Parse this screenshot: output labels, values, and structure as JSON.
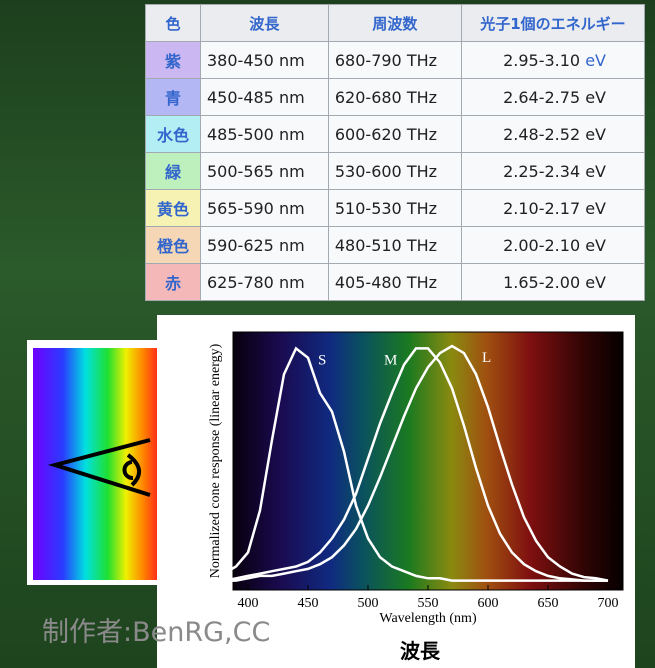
{
  "table": {
    "header": [
      "色",
      "波長",
      "周波数",
      "光子1個のエネルギー"
    ],
    "rows": [
      [
        "紫",
        "380-450 nm",
        "680-790 THz",
        [
          "2.95-3.10",
          "eV"
        ]
      ],
      [
        "青",
        "450-485 nm",
        "620-680 THz",
        "2.64-2.75 eV"
      ],
      [
        "水色",
        "485-500 nm",
        "600-620 THz",
        "2.48-2.52 eV"
      ],
      [
        "緑",
        "500-565 nm",
        "530-600 THz",
        "2.25-2.34 eV"
      ],
      [
        "黄色",
        "565-590 nm",
        "510-530 THz",
        "2.10-2.17 eV"
      ],
      [
        "橙色",
        "590-625 nm",
        "480-510 THz",
        "2.00-2.10 eV"
      ],
      [
        "赤",
        "625-780 nm",
        "405-480 THz",
        "1.65-2.00 eV"
      ]
    ],
    "colors": [
      "#cbb8f2",
      "#b3b8f5",
      "#b3eef5",
      "#bdf0bd",
      "#f5f2b3",
      "#f5d7b5",
      "#f5b8b8"
    ]
  },
  "chart_data": {
    "type": "line",
    "xlabel": "Wavelength (nm)",
    "ylabel": "Normalized cone response (linear energy)",
    "x": [
      380,
      390,
      400,
      410,
      420,
      430,
      440,
      450,
      460,
      470,
      480,
      490,
      500,
      510,
      520,
      530,
      540,
      550,
      560,
      570,
      580,
      590,
      600,
      610,
      620,
      630,
      640,
      650,
      660,
      670,
      680,
      690,
      700
    ],
    "series": [
      {
        "name": "S",
        "color": "#ffffff",
        "values": [
          0.03,
          0.06,
          0.12,
          0.3,
          0.6,
          0.88,
          0.99,
          0.95,
          0.8,
          0.72,
          0.55,
          0.32,
          0.18,
          0.1,
          0.06,
          0.04,
          0.02,
          0.01,
          0.01,
          0,
          0,
          0,
          0,
          0,
          0,
          0,
          0,
          0,
          0,
          0,
          0,
          0,
          0
        ]
      },
      {
        "name": "M",
        "color": "#ffffff",
        "values": [
          0,
          0.01,
          0.02,
          0.03,
          0.04,
          0.05,
          0.06,
          0.08,
          0.12,
          0.18,
          0.26,
          0.37,
          0.52,
          0.67,
          0.8,
          0.92,
          0.99,
          0.99,
          0.93,
          0.82,
          0.66,
          0.48,
          0.32,
          0.2,
          0.12,
          0.07,
          0.04,
          0.02,
          0.01,
          0.005,
          0,
          0,
          0
        ]
      },
      {
        "name": "L",
        "color": "#ffffff",
        "values": [
          0,
          0,
          0.01,
          0.02,
          0.02,
          0.03,
          0.04,
          0.05,
          0.07,
          0.1,
          0.15,
          0.22,
          0.32,
          0.44,
          0.57,
          0.7,
          0.82,
          0.91,
          0.97,
          1.0,
          0.97,
          0.88,
          0.74,
          0.57,
          0.41,
          0.27,
          0.17,
          0.1,
          0.06,
          0.03,
          0.015,
          0.01,
          0
        ]
      }
    ],
    "xlim": [
      387.5,
      712.5
    ],
    "ylim": [
      -0.04,
      1.06
    ],
    "xticks": [
      400,
      450,
      500,
      550,
      600,
      650,
      700
    ]
  },
  "caption": "波長",
  "credit": "制作者:BenRG,CC"
}
